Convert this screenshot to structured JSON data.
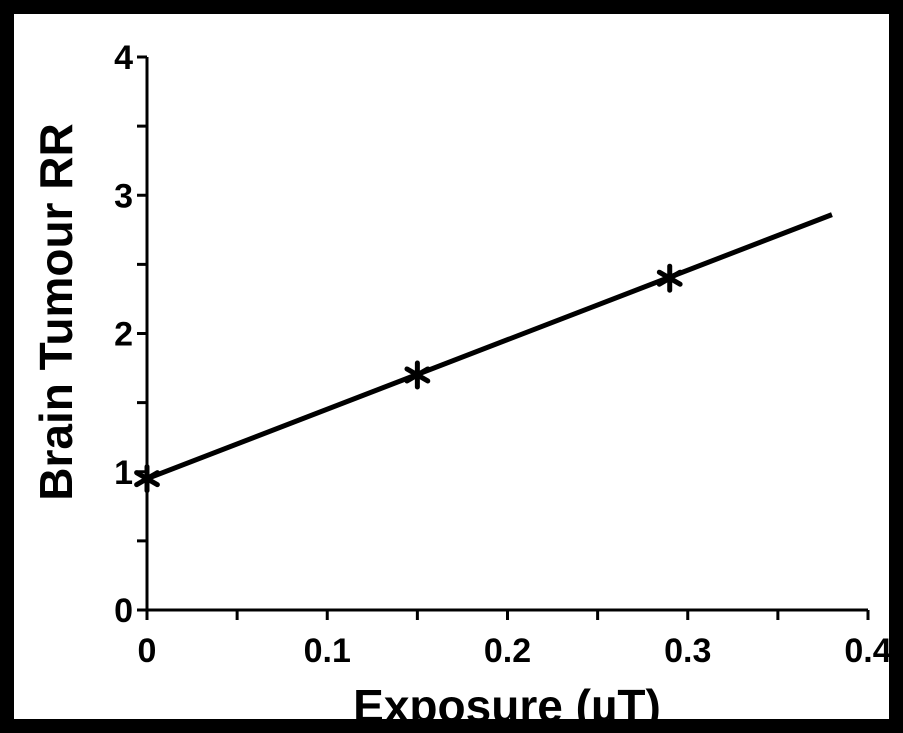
{
  "chart_data": {
    "type": "scatter",
    "title": "",
    "xlabel": "Exposure (µT)",
    "ylabel": "Brain Tumour RR",
    "xlim": [
      0,
      0.4
    ],
    "ylim": [
      0,
      4
    ],
    "x_ticks": [
      "0",
      "0.1",
      "0.2",
      "0.3",
      "0.4"
    ],
    "y_ticks": [
      "0",
      "1",
      "2",
      "3",
      "4"
    ],
    "grid": false,
    "legend": "none",
    "series": [
      {
        "points": [
          {
            "x": 0,
            "y": 0.95
          },
          {
            "x": 0.15,
            "y": 1.7
          },
          {
            "x": 0.29,
            "y": 2.4
          }
        ],
        "marker": "asterisk"
      }
    ],
    "trend_line": {
      "x": [
        0,
        0.38
      ],
      "y": [
        0.95,
        2.86
      ]
    },
    "colors": {
      "foreground": "#000000",
      "background": "#ffffff"
    }
  }
}
